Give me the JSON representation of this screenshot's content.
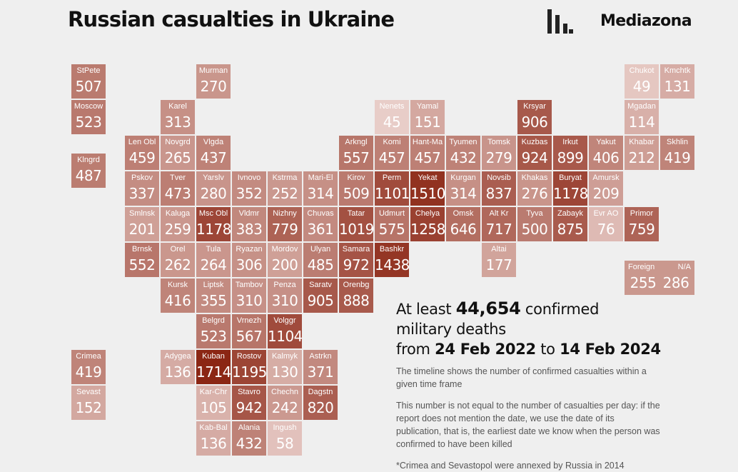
{
  "header": {
    "title": "Russian casualties in Ukraine",
    "brand": "Mediazona"
  },
  "colors": {
    "background": "#efefef",
    "scale_low": "#e2c5bf",
    "scale_high": "#8c2a1a",
    "text_dark": "#111111"
  },
  "legend_range": {
    "min": 45,
    "max": 1714
  },
  "regions": [
    {
      "name": "StPete",
      "value": 507,
      "col": 0,
      "row": 0
    },
    {
      "name": "Moscow",
      "value": 523,
      "col": 0,
      "row": 1
    },
    {
      "name": "Klngrd",
      "value": 487,
      "col": 0,
      "row": 2.5
    },
    {
      "name": "Crimea",
      "value": 419,
      "col": 0,
      "row": 8
    },
    {
      "name": "Sevast",
      "value": 152,
      "col": 0,
      "row": 9
    },
    {
      "name": "Murman",
      "value": 270,
      "col": 3.5,
      "row": 0
    },
    {
      "name": "Karel",
      "value": 313,
      "col": 2.5,
      "row": 1
    },
    {
      "name": "Len Obl",
      "value": 459,
      "col": 1.5,
      "row": 2
    },
    {
      "name": "Novgrd",
      "value": 265,
      "col": 2.5,
      "row": 2
    },
    {
      "name": "Vlgda",
      "value": 437,
      "col": 3.5,
      "row": 2
    },
    {
      "name": "Pskov",
      "value": 337,
      "col": 1.5,
      "row": 3
    },
    {
      "name": "Tver",
      "value": 473,
      "col": 2.5,
      "row": 3
    },
    {
      "name": "Yarslv",
      "value": 280,
      "col": 3.5,
      "row": 3
    },
    {
      "name": "Ivnovo",
      "value": 352,
      "col": 4.5,
      "row": 3
    },
    {
      "name": "Kstrma",
      "value": 252,
      "col": 5.5,
      "row": 3
    },
    {
      "name": "Mari-El",
      "value": 314,
      "col": 6.5,
      "row": 3
    },
    {
      "name": "Smlnsk",
      "value": 201,
      "col": 1.5,
      "row": 4
    },
    {
      "name": "Kaluga",
      "value": 259,
      "col": 2.5,
      "row": 4
    },
    {
      "name": "Msc Obl",
      "value": 1178,
      "col": 3.5,
      "row": 4
    },
    {
      "name": "Vldmr",
      "value": 383,
      "col": 4.5,
      "row": 4
    },
    {
      "name": "Nizhny",
      "value": 779,
      "col": 5.5,
      "row": 4
    },
    {
      "name": "Chuvas",
      "value": 361,
      "col": 6.5,
      "row": 4
    },
    {
      "name": "Brnsk",
      "value": 552,
      "col": 1.5,
      "row": 5
    },
    {
      "name": "Orel",
      "value": 262,
      "col": 2.5,
      "row": 5
    },
    {
      "name": "Tula",
      "value": 264,
      "col": 3.5,
      "row": 5
    },
    {
      "name": "Ryazan",
      "value": 306,
      "col": 4.5,
      "row": 5
    },
    {
      "name": "Mordov",
      "value": 200,
      "col": 5.5,
      "row": 5
    },
    {
      "name": "Ulyan",
      "value": 485,
      "col": 6.5,
      "row": 5
    },
    {
      "name": "Kursk",
      "value": 416,
      "col": 2.5,
      "row": 6
    },
    {
      "name": "Liptsk",
      "value": 355,
      "col": 3.5,
      "row": 6
    },
    {
      "name": "Tambov",
      "value": 310,
      "col": 4.5,
      "row": 6
    },
    {
      "name": "Penza",
      "value": 310,
      "col": 5.5,
      "row": 6
    },
    {
      "name": "Saratv",
      "value": 905,
      "col": 6.5,
      "row": 6
    },
    {
      "name": "Orenbg",
      "value": 888,
      "col": 7.5,
      "row": 6
    },
    {
      "name": "Belgrd",
      "value": 523,
      "col": 3.5,
      "row": 7
    },
    {
      "name": "Vrnezh",
      "value": 567,
      "col": 4.5,
      "row": 7
    },
    {
      "name": "Volggr",
      "value": 1104,
      "col": 5.5,
      "row": 7
    },
    {
      "name": "Adygea",
      "value": 136,
      "col": 2.5,
      "row": 8
    },
    {
      "name": "Kuban",
      "value": 1714,
      "col": 3.5,
      "row": 8
    },
    {
      "name": "Rostov",
      "value": 1195,
      "col": 4.5,
      "row": 8
    },
    {
      "name": "Kalmyk",
      "value": 130,
      "col": 5.5,
      "row": 8
    },
    {
      "name": "Astrkn",
      "value": 371,
      "col": 6.5,
      "row": 8
    },
    {
      "name": "Kar-Chr",
      "value": 105,
      "col": 3.5,
      "row": 9
    },
    {
      "name": "Stavro",
      "value": 942,
      "col": 4.5,
      "row": 9
    },
    {
      "name": "Chechn",
      "value": 242,
      "col": 5.5,
      "row": 9
    },
    {
      "name": "Dagstn",
      "value": 820,
      "col": 6.5,
      "row": 9
    },
    {
      "name": "Kab-Bal",
      "value": 136,
      "col": 3.5,
      "row": 10
    },
    {
      "name": "Alania",
      "value": 432,
      "col": 4.5,
      "row": 10
    },
    {
      "name": "Ingush",
      "value": 58,
      "col": 5.5,
      "row": 10
    },
    {
      "name": "Nenets",
      "value": 45,
      "col": 8.5,
      "row": 1
    },
    {
      "name": "Yamal",
      "value": 151,
      "col": 9.5,
      "row": 1
    },
    {
      "name": "Krsyar",
      "value": 906,
      "col": 12.5,
      "row": 1
    },
    {
      "name": "Arkngl",
      "value": 557,
      "col": 7.5,
      "row": 2
    },
    {
      "name": "Komi",
      "value": 457,
      "col": 8.5,
      "row": 2
    },
    {
      "name": "Hant-Ma",
      "value": 457,
      "col": 9.5,
      "row": 2
    },
    {
      "name": "Tyumen",
      "value": 432,
      "col": 10.5,
      "row": 2
    },
    {
      "name": "Tomsk",
      "value": 279,
      "col": 11.5,
      "row": 2
    },
    {
      "name": "Kuzbas",
      "value": 924,
      "col": 12.5,
      "row": 2
    },
    {
      "name": "Irkut",
      "value": 899,
      "col": 13.5,
      "row": 2
    },
    {
      "name": "Yakut",
      "value": 406,
      "col": 14.5,
      "row": 2
    },
    {
      "name": "Kirov",
      "value": 509,
      "col": 7.5,
      "row": 3
    },
    {
      "name": "Perm",
      "value": 1101,
      "col": 8.5,
      "row": 3
    },
    {
      "name": "Yekat",
      "value": 1510,
      "col": 9.5,
      "row": 3
    },
    {
      "name": "Kurgan",
      "value": 314,
      "col": 10.5,
      "row": 3
    },
    {
      "name": "Novsib",
      "value": 837,
      "col": 11.5,
      "row": 3
    },
    {
      "name": "Khakas",
      "value": 276,
      "col": 12.5,
      "row": 3
    },
    {
      "name": "Buryat",
      "value": 1178,
      "col": 13.5,
      "row": 3
    },
    {
      "name": "Amursk",
      "value": 209,
      "col": 14.5,
      "row": 3
    },
    {
      "name": "Tatar",
      "value": 1019,
      "col": 7.5,
      "row": 4
    },
    {
      "name": "Udmurt",
      "value": 575,
      "col": 8.5,
      "row": 4
    },
    {
      "name": "Chelya",
      "value": 1258,
      "col": 9.5,
      "row": 4
    },
    {
      "name": "Omsk",
      "value": 646,
      "col": 10.5,
      "row": 4
    },
    {
      "name": "Alt Kr",
      "value": 717,
      "col": 11.5,
      "row": 4
    },
    {
      "name": "Tyva",
      "value": 500,
      "col": 12.5,
      "row": 4
    },
    {
      "name": "Zabayk",
      "value": 875,
      "col": 13.5,
      "row": 4
    },
    {
      "name": "Evr AO",
      "value": 76,
      "col": 14.5,
      "row": 4
    },
    {
      "name": "Primor",
      "value": 759,
      "col": 15.5,
      "row": 4
    },
    {
      "name": "Samara",
      "value": 972,
      "col": 7.5,
      "row": 5
    },
    {
      "name": "Bashkr",
      "value": 1438,
      "col": 8.5,
      "row": 5
    },
    {
      "name": "Altai",
      "value": 177,
      "col": 11.5,
      "row": 5
    },
    {
      "name": "Chukot",
      "value": 49,
      "col": 15.5,
      "row": 0
    },
    {
      "name": "Kmchtk",
      "value": 131,
      "col": 16.5,
      "row": 0
    },
    {
      "name": "Mgadan",
      "value": 114,
      "col": 15.5,
      "row": 1
    },
    {
      "name": "Khabar",
      "value": 212,
      "col": 15.5,
      "row": 2
    },
    {
      "name": "Skhlin",
      "value": 419,
      "col": 16.5,
      "row": 2
    }
  ],
  "extra": {
    "foreign_label": "Foreign",
    "foreign_value": 255,
    "na_label": "N/A",
    "na_value": 286,
    "col": 15.5,
    "row": 5.5
  },
  "summary": {
    "prefix": "At least",
    "total": "44,654",
    "line1_suffix": "confirmed",
    "line2": "military deaths",
    "from_word": "from",
    "date_from": "24 Feb 2022",
    "to_word": "to",
    "date_to": "14 Feb 2024"
  },
  "notes": {
    "note1": "The timeline shows the number of confirmed casualties within a given time frame",
    "note2": "This number is not equal to the number of casualties per day: if the report does not mention the date, we use the date of its publication, that is, the earliest date we know when the person was confirmed to have been killed",
    "note3": "*Crimea and Sevastopol were annexed by Russia in 2014"
  }
}
